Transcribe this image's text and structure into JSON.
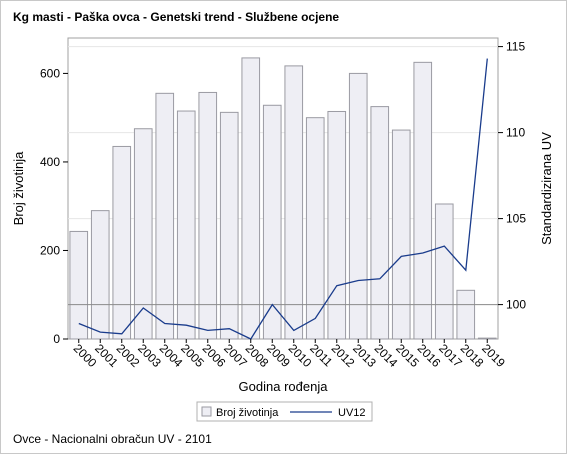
{
  "chart_data": {
    "type": "bar",
    "title": "Kg masti - Paška ovca - Genetski trend - Službene ocjene",
    "xlabel": "Godina rođenja",
    "ylabel": "Broj životinja",
    "y2label": "Standardizirana UV",
    "categories": [
      "2000",
      "2001",
      "2002",
      "2003",
      "2004",
      "2005",
      "2006",
      "2007",
      "2008",
      "2009",
      "2010",
      "2011",
      "2012",
      "2013",
      "2014",
      "2015",
      "2016",
      "2017",
      "2018",
      "2019"
    ],
    "series": [
      {
        "name": "Broj životinja",
        "type": "bar",
        "axis": "left",
        "values": [
          243,
          290,
          435,
          475,
          555,
          515,
          557,
          512,
          635,
          528,
          617,
          500,
          514,
          600,
          525,
          472,
          625,
          305,
          110,
          2
        ],
        "color": "#eeeef4",
        "stroke": "#9a9aa2"
      },
      {
        "name": "UV12",
        "type": "line",
        "axis": "right",
        "values": [
          98.9,
          98.4,
          98.3,
          99.8,
          98.9,
          98.8,
          98.5,
          98.6,
          98.0,
          100.0,
          98.5,
          99.2,
          101.1,
          101.4,
          101.5,
          102.8,
          103.0,
          103.4,
          102.0,
          114.3
        ],
        "color": "#1a3c8c"
      }
    ],
    "ylim": [
      0,
      680
    ],
    "yticks": [
      0,
      200,
      400,
      600
    ],
    "y2lim": [
      98.0,
      115.5
    ],
    "y2ticks": [
      100,
      105,
      110,
      115
    ],
    "reference_line": 100,
    "legend_position": "bottom-center",
    "grid": true
  },
  "footnote": "Ovce - Nacionalni obračun UV - 2101"
}
